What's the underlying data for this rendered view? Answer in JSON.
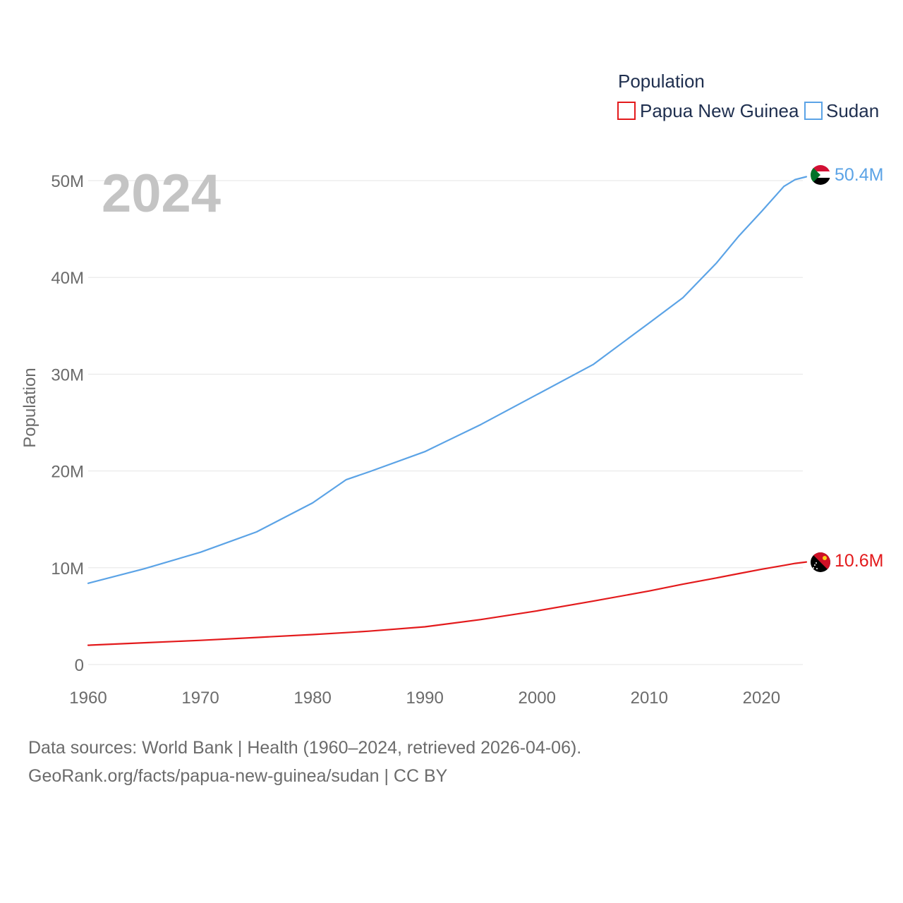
{
  "chart_data": {
    "type": "line",
    "title": "Population",
    "current_year": "2024",
    "ylabel": "Population",
    "xlim": [
      1960,
      2024
    ],
    "ylim": [
      0,
      50000000
    ],
    "x_ticks": [
      1960,
      1970,
      1980,
      1990,
      2000,
      2010,
      2020
    ],
    "x_tick_labels": [
      "1960",
      "1970",
      "1980",
      "1990",
      "2000",
      "2010",
      "2020"
    ],
    "y_ticks": [
      0,
      10000000,
      20000000,
      30000000,
      40000000,
      50000000
    ],
    "y_tick_labels": [
      "0",
      "10M",
      "20M",
      "30M",
      "40M",
      "50M"
    ],
    "grid": true,
    "legend_position": "top-right",
    "x": [
      1960,
      1965,
      1970,
      1975,
      1980,
      1983,
      1985,
      1990,
      1995,
      2000,
      2005,
      2010,
      2013,
      2016,
      2018,
      2020,
      2022,
      2023,
      2024
    ],
    "series": [
      {
        "name": "Papua New Guinea",
        "color": "#e31a1c",
        "values": [
          2000000,
          2250000,
          2500000,
          2800000,
          3100000,
          3300000,
          3450000,
          3900000,
          4650000,
          5550000,
          6550000,
          7600000,
          8300000,
          8950000,
          9400000,
          9850000,
          10250000,
          10450000,
          10600000
        ],
        "end_label": "10.6M"
      },
      {
        "name": "Sudan",
        "color": "#5ba3e6",
        "values": [
          8400000,
          9900000,
          11600000,
          13700000,
          16700000,
          19100000,
          19900000,
          22000000,
          24800000,
          27900000,
          31000000,
          35300000,
          37900000,
          41500000,
          44300000,
          46800000,
          49400000,
          50100000,
          50400000
        ],
        "end_label": "50.4M"
      }
    ]
  },
  "source": {
    "line1": "Data sources: World Bank | Health (1960–2024, retrieved 2026-04-06).",
    "line2": "GeoRank.org/facts/papua-new-guinea/sudan | CC BY"
  }
}
